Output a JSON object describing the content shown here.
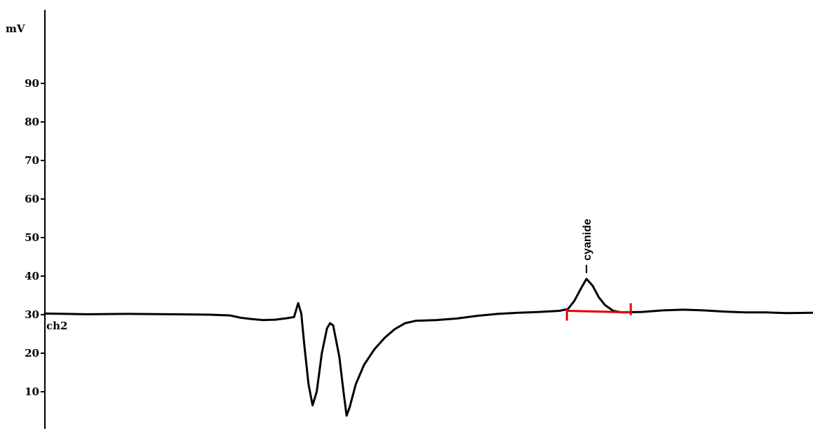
{
  "chart_data": {
    "type": "line",
    "ylabel": "mV",
    "channel": "ch2",
    "ylim": [
      0,
      100
    ],
    "yticks": [
      90,
      80,
      70,
      60,
      50,
      40,
      30,
      20,
      10
    ],
    "grid": false,
    "colors": {
      "trace": "#000000",
      "baseline": "#e00000"
    },
    "series": [
      {
        "name": "ch2",
        "points": [
          [
            0,
            30.3
          ],
          [
            2,
            30.1
          ],
          [
            4,
            30.2
          ],
          [
            6,
            30.1
          ],
          [
            8,
            30.0
          ],
          [
            9,
            29.8
          ],
          [
            9.5,
            29.2
          ],
          [
            10,
            28.9
          ],
          [
            10.6,
            28.6
          ],
          [
            11.2,
            28.7
          ],
          [
            11.8,
            29.1
          ],
          [
            12.1,
            29.4
          ],
          [
            12.3,
            33.0
          ],
          [
            12.45,
            30.3
          ],
          [
            12.6,
            22.0
          ],
          [
            12.8,
            12.0
          ],
          [
            13.0,
            6.5
          ],
          [
            13.2,
            10.0
          ],
          [
            13.45,
            20.0
          ],
          [
            13.7,
            26.5
          ],
          [
            13.85,
            27.8
          ],
          [
            14.0,
            27.2
          ],
          [
            14.3,
            19.0
          ],
          [
            14.5,
            10.0
          ],
          [
            14.65,
            3.8
          ],
          [
            14.8,
            6.0
          ],
          [
            15.1,
            12.0
          ],
          [
            15.5,
            17.0
          ],
          [
            16.0,
            21.0
          ],
          [
            16.5,
            24.0
          ],
          [
            17.0,
            26.3
          ],
          [
            17.5,
            27.8
          ],
          [
            18.0,
            28.4
          ],
          [
            19.0,
            28.6
          ],
          [
            20.0,
            29.0
          ],
          [
            21.0,
            29.7
          ],
          [
            22.0,
            30.2
          ],
          [
            23.0,
            30.5
          ],
          [
            24.0,
            30.7
          ],
          [
            25.0,
            31.0
          ],
          [
            25.4,
            31.5
          ],
          [
            25.7,
            33.5
          ],
          [
            26.0,
            36.5
          ],
          [
            26.3,
            39.3
          ],
          [
            26.6,
            37.5
          ],
          [
            26.9,
            34.5
          ],
          [
            27.2,
            32.5
          ],
          [
            27.6,
            31.0
          ],
          [
            28.0,
            30.6
          ],
          [
            29.0,
            30.7
          ],
          [
            30.0,
            31.1
          ],
          [
            31.0,
            31.3
          ],
          [
            32.0,
            31.1
          ],
          [
            33.0,
            30.8
          ],
          [
            34.0,
            30.6
          ],
          [
            35.0,
            30.6
          ],
          [
            36.0,
            30.4
          ],
          [
            37.3,
            30.5
          ]
        ]
      }
    ],
    "peak": {
      "label": "cyanide",
      "x": 26.3,
      "y": 39.3
    },
    "baseline_segment": {
      "x_start": 25.35,
      "x_end": 28.45,
      "y_start": 31.0,
      "y_end": 30.6
    },
    "xlim": [
      0,
      37.3
    ]
  }
}
